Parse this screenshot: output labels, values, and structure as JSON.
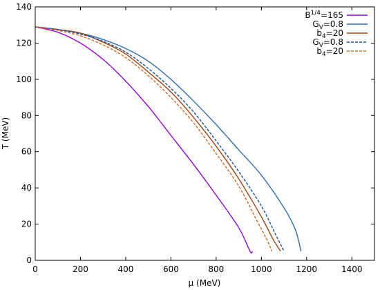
{
  "chart_data": {
    "type": "line",
    "xlabel": "μ (MeV)",
    "ylabel": "T (MeV)",
    "xlim": [
      0,
      1500
    ],
    "ylim": [
      0,
      140
    ],
    "x_ticks": [
      0,
      200,
      400,
      600,
      800,
      1000,
      1200,
      1400
    ],
    "y_ticks": [
      0,
      20,
      40,
      60,
      80,
      100,
      120,
      140
    ],
    "grid": false,
    "legend_position": "top-right",
    "series": [
      {
        "name": "B^{1/4}=165",
        "legend": {
          "base": "B",
          "sup": "1/4",
          "rest": "=165"
        },
        "color": "#9400d3",
        "dash": "solid",
        "points": [
          [
            0,
            129
          ],
          [
            100,
            126
          ],
          [
            200,
            120
          ],
          [
            300,
            111
          ],
          [
            400,
            99
          ],
          [
            500,
            85
          ],
          [
            600,
            69
          ],
          [
            700,
            53
          ],
          [
            800,
            36
          ],
          [
            900,
            18
          ],
          [
            950,
            5
          ],
          [
            960,
            5
          ]
        ]
      },
      {
        "name": "G_V=0.8",
        "legend": {
          "base": "G",
          "sub": "V",
          "rest": "=0.8"
        },
        "color": "#2c6db3",
        "dash": "solid",
        "points": [
          [
            0,
            129
          ],
          [
            100,
            127.5
          ],
          [
            200,
            125.5
          ],
          [
            300,
            122
          ],
          [
            400,
            117
          ],
          [
            500,
            110
          ],
          [
            600,
            100
          ],
          [
            700,
            88
          ],
          [
            800,
            75
          ],
          [
            900,
            61
          ],
          [
            1000,
            47
          ],
          [
            1100,
            29
          ],
          [
            1150,
            17
          ],
          [
            1175,
            5
          ]
        ]
      },
      {
        "name": "b_4=20",
        "legend": {
          "base": "b",
          "sub": "4",
          "rest": "=20"
        },
        "color": "#a0410d",
        "dash": "solid",
        "points": [
          [
            0,
            129
          ],
          [
            100,
            127.5
          ],
          [
            200,
            125.5
          ],
          [
            300,
            120.5
          ],
          [
            400,
            114
          ],
          [
            500,
            104
          ],
          [
            600,
            93
          ],
          [
            700,
            79
          ],
          [
            800,
            63
          ],
          [
            900,
            45
          ],
          [
            1000,
            24
          ],
          [
            1050,
            12
          ],
          [
            1085,
            5
          ]
        ]
      },
      {
        "name": "G_V=0.8",
        "legend": {
          "base": "G",
          "sub": "V",
          "rest": "=0.8"
        },
        "color": "#1a4f9a",
        "dash": "dashed",
        "points": [
          [
            0,
            129
          ],
          [
            100,
            127.5
          ],
          [
            200,
            125
          ],
          [
            300,
            121
          ],
          [
            400,
            115
          ],
          [
            500,
            106
          ],
          [
            600,
            95
          ],
          [
            700,
            82
          ],
          [
            800,
            66
          ],
          [
            900,
            49
          ],
          [
            1000,
            30
          ],
          [
            1060,
            15
          ],
          [
            1100,
            5
          ]
        ]
      },
      {
        "name": "b_4=20",
        "legend": {
          "base": "b",
          "sub": "4",
          "rest": "=20"
        },
        "color": "#d2691e",
        "dash": "dashed",
        "points": [
          [
            0,
            129
          ],
          [
            100,
            127
          ],
          [
            200,
            124
          ],
          [
            300,
            119
          ],
          [
            400,
            112
          ],
          [
            500,
            102
          ],
          [
            600,
            90
          ],
          [
            700,
            76
          ],
          [
            800,
            59
          ],
          [
            900,
            41
          ],
          [
            980,
            22
          ],
          [
            1030,
            10
          ],
          [
            1045,
            5
          ]
        ]
      }
    ]
  }
}
